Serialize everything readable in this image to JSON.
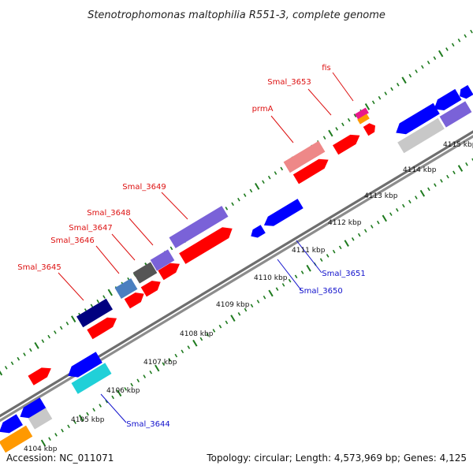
{
  "title": "Stenotrophomonas maltophilia R551-3, complete genome",
  "footer": {
    "accession": "Accession: NC_011071",
    "topology": "Topology: circular; Length: 4,573,969 bp; Genes: 4,125"
  },
  "colors": {
    "backbone": "#777777",
    "tick": "#1e7a1e",
    "label_forward": "#dd1111",
    "label_reverse": "#1111cc"
  },
  "ticks": [
    {
      "label": "4104 kbp"
    },
    {
      "label": "4105 kbp"
    },
    {
      "label": "4106 kbp"
    },
    {
      "label": "4107 kbp"
    },
    {
      "label": "4108 kbp"
    },
    {
      "label": "4109 kbp"
    },
    {
      "label": "4110 kbp"
    },
    {
      "label": "4111 kbp"
    },
    {
      "label": "4112 kbp"
    },
    {
      "label": "4113 kbp"
    },
    {
      "label": "4114 kbp"
    },
    {
      "label": "4115 kbp"
    }
  ],
  "gene_labels": [
    {
      "text": "fis",
      "strand": "forward"
    },
    {
      "text": "Smal_3653",
      "strand": "forward"
    },
    {
      "text": "prmA",
      "strand": "forward"
    },
    {
      "text": "Smal_3649",
      "strand": "forward"
    },
    {
      "text": "Smal_3648",
      "strand": "forward"
    },
    {
      "text": "Smal_3647",
      "strand": "forward"
    },
    {
      "text": "Smal_3646",
      "strand": "forward"
    },
    {
      "text": "Smal_3645",
      "strand": "forward"
    },
    {
      "text": "Smal_3651",
      "strand": "reverse"
    },
    {
      "text": "Smal_3650",
      "strand": "reverse"
    },
    {
      "text": "Smal_3644",
      "strand": "reverse"
    }
  ],
  "genes": [
    {
      "color": "#ff0000"
    },
    {
      "color": "#ff0000"
    },
    {
      "color": "#ff0000"
    },
    {
      "color": "#ff0000"
    },
    {
      "color": "#ff0000"
    },
    {
      "color": "#ff0000"
    },
    {
      "color": "#ff0000"
    },
    {
      "color": "#ff0000"
    },
    {
      "color": "#ff0000"
    },
    {
      "color": "#ee8888"
    },
    {
      "color": "#e8188c"
    },
    {
      "color": "#ff9900"
    },
    {
      "color": "#7a62d8"
    },
    {
      "color": "#7a62d8"
    },
    {
      "color": "#555555"
    },
    {
      "color": "#4a7fc0"
    },
    {
      "color": "#000080"
    },
    {
      "color": "#0000ff"
    },
    {
      "color": "#0000ff"
    },
    {
      "color": "#0000ff"
    },
    {
      "color": "#0000ff"
    },
    {
      "color": "#0000ff"
    },
    {
      "color": "#20d0d8"
    },
    {
      "color": "#0000ff"
    },
    {
      "color": "#0000ff"
    },
    {
      "color": "#c8c8c8"
    },
    {
      "color": "#ff9900"
    },
    {
      "color": "#0000ff"
    },
    {
      "color": "#0000ff"
    },
    {
      "color": "#7a62d8"
    },
    {
      "color": "#c8c8c8"
    }
  ]
}
